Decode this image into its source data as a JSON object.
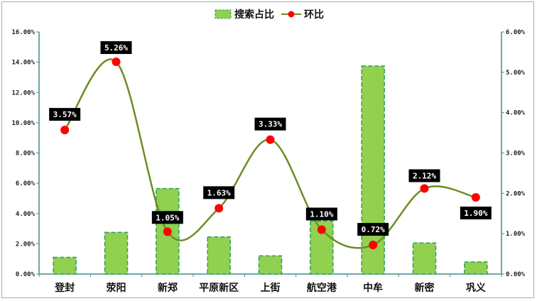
{
  "chart_data": {
    "type": "bar",
    "categories": [
      "登封",
      "荥阳",
      "新郑",
      "平原新区",
      "上街",
      "航空港",
      "中牟",
      "新密",
      "巩义"
    ],
    "series": [
      {
        "name": "搜索占比",
        "type": "bar",
        "axis": "left",
        "values": [
          1.1,
          2.75,
          5.65,
          2.45,
          1.2,
          3.5,
          13.75,
          2.05,
          0.8
        ]
      },
      {
        "name": "环比",
        "type": "line",
        "axis": "right",
        "values": [
          3.57,
          5.26,
          1.05,
          1.63,
          3.33,
          1.1,
          0.72,
          2.12,
          1.9
        ]
      }
    ],
    "data_labels": [
      "3.57%",
      "5.26%",
      "1.05%",
      "1.63%",
      "3.33%",
      "1.10%",
      "0.72%",
      "2.12%",
      "1.90%"
    ],
    "left_axis": {
      "ylim": [
        0,
        16
      ],
      "ticks": [
        0,
        2,
        4,
        6,
        8,
        10,
        12,
        14,
        16
      ],
      "tick_labels": [
        "0.00%",
        "2.00%",
        "4.00%",
        "6.00%",
        "8.00%",
        "10.00%",
        "12.00%",
        "14.00%",
        "16.00%"
      ]
    },
    "right_axis": {
      "ylim": [
        0,
        6
      ],
      "ticks": [
        0,
        1,
        2,
        3,
        4,
        5,
        6
      ],
      "tick_labels": [
        "0.00%",
        "1.00%",
        "2.00%",
        "3.00%",
        "4.00%",
        "5.00%",
        "6.00%"
      ]
    },
    "legend_position": "top-center",
    "grid": false,
    "colors": {
      "bar_fill": "#92d050",
      "bar_border": "#2e9e5e",
      "line": "#6b8e23",
      "marker": "#ff0000",
      "label_bg": "#000000",
      "axis": "#3c8f8f"
    }
  }
}
